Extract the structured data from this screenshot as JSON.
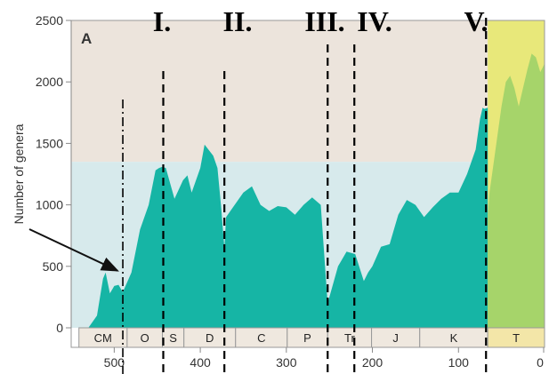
{
  "chart_data": {
    "type": "area",
    "panel_label": "A",
    "ylabel": "Number of genera",
    "xlabel": "",
    "x_reversed": true,
    "xlim": [
      550,
      0
    ],
    "ylim": [
      0,
      2500
    ],
    "x_ticks": [
      500,
      400,
      300,
      200,
      100,
      0
    ],
    "x_tick_labels": [
      "500",
      "400",
      "300",
      "200",
      "100",
      "0"
    ],
    "y_ticks": [
      0,
      500,
      1000,
      1500,
      2000,
      2500
    ],
    "y_tick_labels": [
      "0",
      "500",
      "1000",
      "1500",
      "2000",
      "2500"
    ],
    "series": [
      {
        "x": [
          530,
          520,
          513,
          510,
          505,
          500,
          495,
          490,
          480,
          470,
          460,
          452,
          448,
          444,
          440,
          430,
          420,
          415,
          410,
          400,
          395,
          385,
          380,
          376,
          372,
          370,
          362,
          350,
          340,
          330,
          320,
          310,
          300,
          290,
          280,
          270,
          260,
          255,
          252,
          250,
          240,
          230,
          220,
          210,
          205,
          200,
          190,
          180,
          170,
          160,
          150,
          140,
          130,
          120,
          110,
          100,
          90,
          80,
          75,
          72,
          70,
          66
        ],
        "y": [
          0,
          100,
          400,
          450,
          280,
          340,
          350,
          290,
          450,
          800,
          1000,
          1280,
          1300,
          1310,
          1300,
          1050,
          1200,
          1240,
          1100,
          1300,
          1490,
          1400,
          1300,
          1000,
          650,
          900,
          980,
          1100,
          1150,
          1000,
          950,
          990,
          980,
          920,
          1000,
          1060,
          1000,
          500,
          200,
          250,
          500,
          620,
          600,
          380,
          450,
          500,
          660,
          680,
          920,
          1040,
          1000,
          900,
          980,
          1050,
          1100,
          1100,
          1250,
          1450,
          1700,
          1790,
          1780,
          1790
        ],
        "color": "#16b5a5"
      },
      {
        "x": [
          66,
          64,
          60,
          55,
          50,
          45,
          40,
          35,
          30,
          25,
          20,
          15,
          10,
          5,
          2,
          0
        ],
        "y": [
          900,
          1100,
          1300,
          1550,
          1800,
          2000,
          2050,
          1950,
          1800,
          1950,
          2100,
          2230,
          2200,
          2080,
          2120,
          2150
        ],
        "color": "#a6d46a"
      }
    ],
    "background_bands": [
      {
        "from": 550,
        "to": 66,
        "lower_color": "#d7eaec",
        "upper_color": "#ece4dc",
        "split_y": 1350
      },
      {
        "from": 66,
        "to": 0,
        "color": "#e8e87a"
      }
    ],
    "periods": [
      {
        "label": "CM",
        "start": 541,
        "end": 485
      },
      {
        "label": "O",
        "start": 485,
        "end": 444
      },
      {
        "label": "S",
        "start": 444,
        "end": 419
      },
      {
        "label": "D",
        "start": 419,
        "end": 359
      },
      {
        "label": "C",
        "start": 359,
        "end": 299
      },
      {
        "label": "P",
        "start": 299,
        "end": 252
      },
      {
        "label": "Tr",
        "start": 252,
        "end": 201
      },
      {
        "label": "J",
        "start": 201,
        "end": 145
      },
      {
        "label": "K",
        "start": 145,
        "end": 66
      },
      {
        "label": "T",
        "start": 66,
        "end": 0
      }
    ],
    "extinction_events": [
      {
        "label": "I.",
        "x": 443
      },
      {
        "label": "II.",
        "x": 372
      },
      {
        "label": "III.",
        "x": 252
      },
      {
        "label": "IV.",
        "x": 221
      },
      {
        "label": "V.",
        "x": 68
      }
    ],
    "dashdot_marker": {
      "x": 490
    },
    "arrow_annotation": {
      "pointing_to_x": 492,
      "pointing_to_y": 450
    },
    "grid": false,
    "legend": "none"
  }
}
